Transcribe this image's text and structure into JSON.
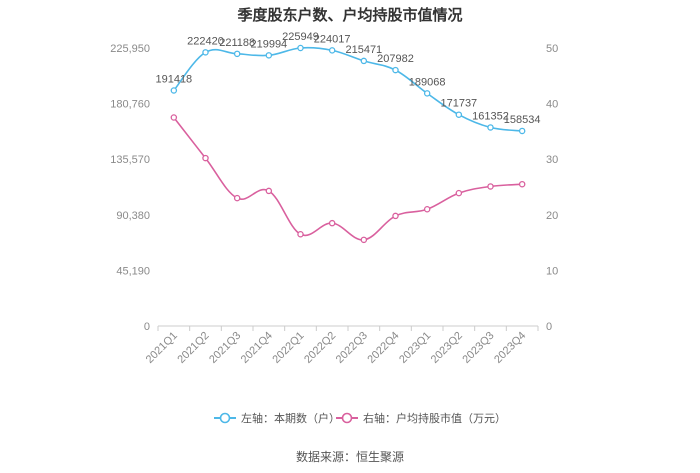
{
  "chart_data": {
    "type": "line",
    "title": "季度股东户数、户均持股市值情况",
    "categories": [
      "2021Q1",
      "2021Q2",
      "2021Q3",
      "2021Q4",
      "2022Q1",
      "2022Q2",
      "2022Q3",
      "2022Q4",
      "2023Q1",
      "2023Q2",
      "2023Q3",
      "2023Q4"
    ],
    "left_axis": {
      "min": 0,
      "max": 225950,
      "ticks": [
        "0",
        "45,190",
        "90,380",
        "135,570",
        "180,760",
        "225,950"
      ]
    },
    "right_axis": {
      "min": 0,
      "max": 50,
      "ticks": [
        "0",
        "10",
        "20",
        "30",
        "40",
        "50"
      ]
    },
    "series": [
      {
        "name": "左轴：本期数（户）",
        "axis": "left",
        "color": "#4db8e8",
        "values": [
          191418,
          222420,
          221188,
          219994,
          225949,
          224017,
          215471,
          207982,
          189068,
          171737,
          161352,
          158534
        ],
        "labels": [
          "191418",
          "222420",
          "221188",
          "219994",
          "225949",
          "224017",
          "215471",
          "207982",
          "189068",
          "171737",
          "161352",
          "158534"
        ]
      },
      {
        "name": "右轴：户均持股市值（万元）",
        "axis": "right",
        "color": "#d9609e",
        "values": [
          37.5,
          30.2,
          23.0,
          24.3,
          16.5,
          18.5,
          15.5,
          19.8,
          21.0,
          23.9,
          25.1,
          25.5
        ]
      }
    ],
    "grid": false,
    "legend": "bottom-center"
  },
  "source": "数据来源：恒生聚源"
}
